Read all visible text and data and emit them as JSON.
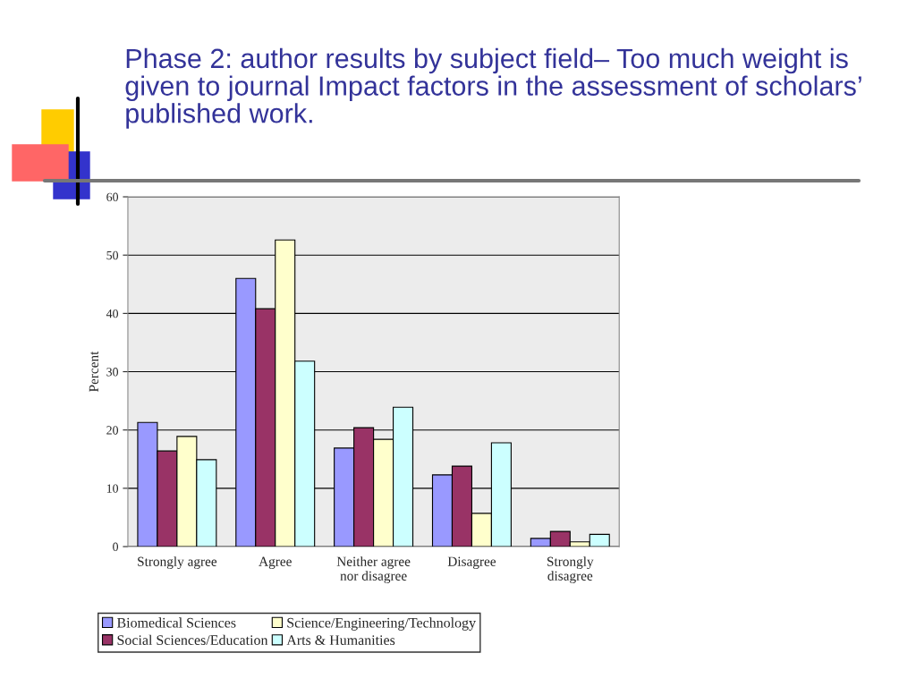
{
  "chart_data": {
    "type": "bar",
    "title": "Phase 2: author results by subject field– Too much weight is given to journal Impact factors in the assessment of scholars’ published work.",
    "ylabel": "Percent",
    "categories": [
      "Strongly agree",
      "Agree",
      "Neither agree\nnor disagree",
      "Disagree",
      "Strongly\ndisagree"
    ],
    "series": [
      {
        "name": "Biomedical Sciences",
        "color": "#9999ff",
        "values": [
          21.3,
          46.0,
          16.9,
          12.3,
          1.4
        ]
      },
      {
        "name": "Social Sciences/Education",
        "color": "#993366",
        "values": [
          16.4,
          40.8,
          20.4,
          13.8,
          2.6
        ]
      },
      {
        "name": "Science/Engineering/Technology",
        "color": "#ffffcc",
        "values": [
          18.9,
          52.6,
          18.4,
          5.7,
          0.8
        ]
      },
      {
        "name": "Arts & Humanities",
        "color": "#ccffff",
        "values": [
          14.9,
          31.8,
          23.9,
          17.8,
          2.1
        ]
      }
    ],
    "ylim": [
      0,
      60
    ],
    "yticks": [
      0,
      10,
      20,
      30,
      40,
      50,
      60
    ],
    "grid": "y",
    "legend": "bottom"
  }
}
